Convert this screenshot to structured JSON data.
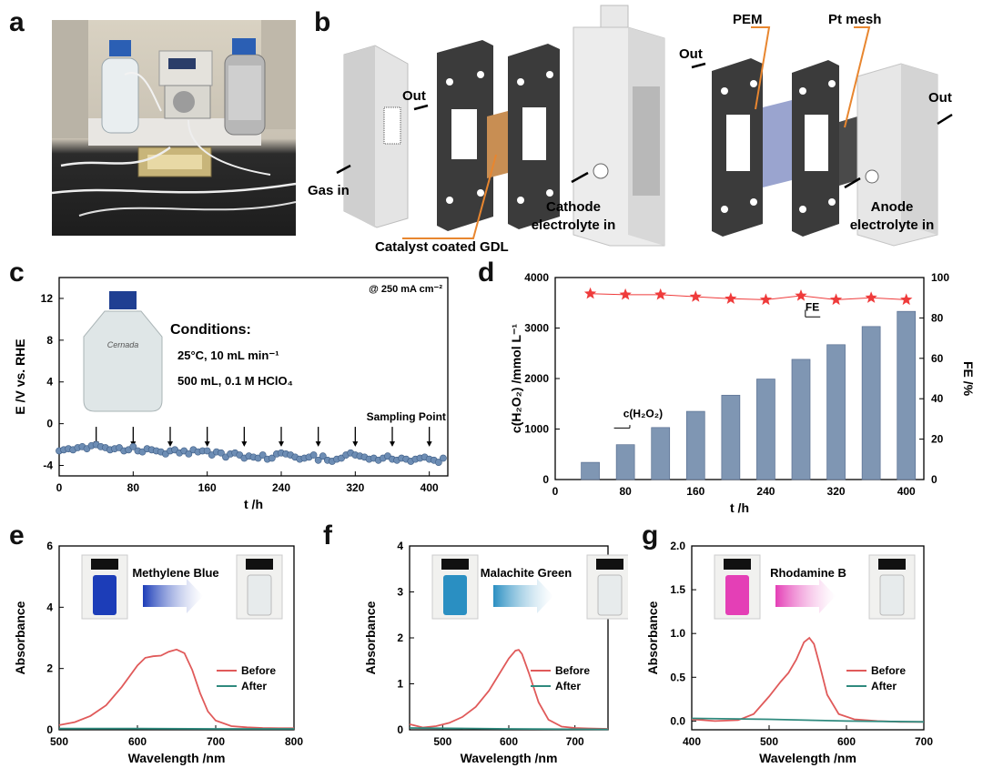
{
  "panels": {
    "a": "a",
    "b": "b",
    "c": "c",
    "d": "d",
    "e": "e",
    "f": "f",
    "g": "g"
  },
  "colors": {
    "bar": "#7f96b3",
    "point": "#6d8db4",
    "star": "#ef3b3b",
    "before": "#e05a5a",
    "after": "#2f8a7e",
    "mb": "#1c3db8",
    "mg": "#2a8fc2",
    "rb": "#e43fb6"
  },
  "diagram_b": {
    "labels": {
      "out_left": "Out",
      "gas_in": "Gas in",
      "catalyst": "Catalyst coated GDL",
      "cathode_line1": "Cathode",
      "cathode_line2": "electrolyte in",
      "out_mid": "Out",
      "pem": "PEM",
      "pt_mesh": "Pt mesh",
      "out_right": "Out",
      "anode_line1": "Anode",
      "anode_line2": "electrolyte in"
    }
  },
  "chart_data": [
    {
      "id": "c",
      "type": "scatter",
      "title": "@ 250 mA cm⁻²",
      "xlabel": "t /h",
      "ylabel": "E /V vs. RHE",
      "xlim": [
        0,
        420
      ],
      "ylim": [
        -5,
        14
      ],
      "xticks": [
        0,
        80,
        160,
        240,
        320,
        400
      ],
      "yticks": [
        -4,
        0,
        4,
        8,
        12
      ],
      "conditions": {
        "title": "Conditions:",
        "line1": "25°C, 10 mL min⁻¹",
        "line2": "500 mL, 0.1 M HClO₄"
      },
      "bottle_label": "Cernada",
      "sampling_label": "Sampling Point",
      "sampling_points": [
        40,
        80,
        120,
        160,
        200,
        240,
        280,
        320,
        360,
        400
      ],
      "series": [
        {
          "name": "E",
          "x": [
            0,
            5,
            10,
            15,
            20,
            25,
            30,
            35,
            40,
            45,
            50,
            55,
            60,
            65,
            70,
            75,
            80,
            85,
            90,
            95,
            100,
            105,
            110,
            115,
            120,
            125,
            130,
            135,
            140,
            145,
            150,
            155,
            160,
            165,
            170,
            175,
            180,
            185,
            190,
            195,
            200,
            205,
            210,
            215,
            220,
            225,
            230,
            235,
            240,
            245,
            250,
            255,
            260,
            265,
            270,
            275,
            280,
            285,
            290,
            295,
            300,
            305,
            310,
            315,
            320,
            325,
            330,
            335,
            340,
            345,
            350,
            355,
            360,
            365,
            370,
            375,
            380,
            385,
            390,
            395,
            400,
            405,
            410,
            415
          ],
          "y": [
            -2.6,
            -2.5,
            -2.4,
            -2.5,
            -2.3,
            -2.2,
            -2.4,
            -2.1,
            -2.0,
            -2.2,
            -2.3,
            -2.5,
            -2.4,
            -2.3,
            -2.6,
            -2.5,
            -2.2,
            -2.6,
            -2.7,
            -2.4,
            -2.5,
            -2.6,
            -2.7,
            -2.9,
            -2.6,
            -2.5,
            -2.8,
            -2.6,
            -2.9,
            -2.5,
            -2.7,
            -2.6,
            -2.6,
            -3.0,
            -2.7,
            -2.8,
            -3.2,
            -2.9,
            -2.8,
            -3.0,
            -3.3,
            -3.1,
            -3.2,
            -3.3,
            -3.0,
            -3.4,
            -3.3,
            -2.9,
            -2.8,
            -2.9,
            -3.0,
            -3.2,
            -3.4,
            -3.3,
            -3.2,
            -3.0,
            -3.5,
            -3.1,
            -3.5,
            -3.6,
            -3.4,
            -3.3,
            -3.0,
            -2.8,
            -3.0,
            -3.1,
            -3.2,
            -3.4,
            -3.3,
            -3.5,
            -3.3,
            -3.1,
            -3.4,
            -3.5,
            -3.3,
            -3.4,
            -3.6,
            -3.4,
            -3.3,
            -3.2,
            -3.4,
            -3.5,
            -3.7,
            -3.3
          ]
        }
      ]
    },
    {
      "id": "d",
      "type": "bar",
      "xlabel": "t /h",
      "ylabel": "c(H₂O₂) /mmol L⁻¹",
      "y2label": "FE /%",
      "xlim": [
        0,
        420
      ],
      "ylim": [
        0,
        4000
      ],
      "y2lim": [
        0,
        100
      ],
      "xticks": [
        0,
        80,
        160,
        240,
        320,
        400
      ],
      "yticks": [
        0,
        1000,
        2000,
        3000,
        4000
      ],
      "y2ticks": [
        0,
        20,
        40,
        60,
        80,
        100
      ],
      "legend_bar": "c(H₂O₂)",
      "legend_fe": "FE",
      "series": [
        {
          "name": "c(H2O2)",
          "x": [
            40,
            80,
            120,
            160,
            200,
            240,
            280,
            320,
            360,
            400
          ],
          "values": [
            340,
            690,
            1030,
            1350,
            1670,
            1990,
            2380,
            2670,
            3030,
            3330
          ]
        },
        {
          "name": "FE",
          "x": [
            40,
            80,
            120,
            160,
            200,
            240,
            280,
            320,
            360,
            400
          ],
          "values": [
            92,
            91.5,
            91.5,
            90.5,
            89.5,
            89,
            91,
            89,
            90,
            89
          ]
        }
      ]
    },
    {
      "id": "e",
      "type": "line",
      "title": "Methylene Blue",
      "xlabel": "Wavelength /nm",
      "ylabel": "Absorbance",
      "xlim": [
        500,
        800
      ],
      "ylim": [
        0,
        6
      ],
      "xticks": [
        500,
        600,
        700,
        800
      ],
      "yticks": [
        0,
        2,
        4,
        6
      ],
      "legend": [
        "Before",
        "After"
      ],
      "series": [
        {
          "name": "Before",
          "x": [
            500,
            520,
            540,
            560,
            580,
            600,
            610,
            620,
            630,
            640,
            650,
            660,
            670,
            680,
            690,
            700,
            720,
            740,
            760,
            780,
            800
          ],
          "y": [
            0.15,
            0.25,
            0.45,
            0.8,
            1.4,
            2.1,
            2.35,
            2.4,
            2.42,
            2.55,
            2.62,
            2.5,
            1.95,
            1.2,
            0.6,
            0.3,
            0.12,
            0.08,
            0.06,
            0.05,
            0.05
          ]
        },
        {
          "name": "After",
          "x": [
            500,
            600,
            700,
            800
          ],
          "y": [
            0.04,
            0.04,
            0.03,
            0.03
          ]
        }
      ]
    },
    {
      "id": "f",
      "type": "line",
      "title": "Malachite Green",
      "xlabel": "Wavelength /nm",
      "ylabel": "Absorbance",
      "xlim": [
        450,
        750
      ],
      "ylim": [
        0,
        4
      ],
      "xticks": [
        500,
        600,
        700
      ],
      "yticks": [
        0,
        1,
        2,
        3,
        4
      ],
      "legend": [
        "Before",
        "After"
      ],
      "series": [
        {
          "name": "Before",
          "x": [
            450,
            470,
            490,
            510,
            530,
            550,
            570,
            585,
            600,
            610,
            615,
            620,
            630,
            645,
            660,
            680,
            700,
            720,
            750
          ],
          "y": [
            0.12,
            0.05,
            0.08,
            0.15,
            0.28,
            0.5,
            0.85,
            1.2,
            1.55,
            1.72,
            1.74,
            1.65,
            1.25,
            0.6,
            0.22,
            0.07,
            0.04,
            0.03,
            0.02
          ]
        },
        {
          "name": "After",
          "x": [
            450,
            600,
            750
          ],
          "y": [
            0.04,
            0.02,
            0.01
          ]
        }
      ]
    },
    {
      "id": "g",
      "type": "line",
      "title": "Rhodamine B",
      "xlabel": "Wavelength /nm",
      "ylabel": "Absorbance",
      "xlim": [
        400,
        700
      ],
      "ylim": [
        -0.1,
        2.0
      ],
      "xticks": [
        400,
        500,
        600,
        700
      ],
      "yticks": [
        0.0,
        0.5,
        1.0,
        1.5,
        2.0
      ],
      "legend": [
        "Before",
        "After"
      ],
      "series": [
        {
          "name": "Before",
          "x": [
            400,
            430,
            460,
            480,
            500,
            515,
            525,
            535,
            545,
            552,
            558,
            565,
            575,
            590,
            610,
            640,
            670,
            700
          ],
          "y": [
            0.02,
            0.0,
            0.01,
            0.08,
            0.28,
            0.45,
            0.55,
            0.7,
            0.9,
            0.95,
            0.88,
            0.65,
            0.3,
            0.08,
            0.02,
            0.0,
            -0.01,
            -0.01
          ]
        },
        {
          "name": "After",
          "x": [
            400,
            500,
            600,
            700
          ],
          "y": [
            0.03,
            0.02,
            0.0,
            -0.01
          ]
        }
      ]
    }
  ]
}
